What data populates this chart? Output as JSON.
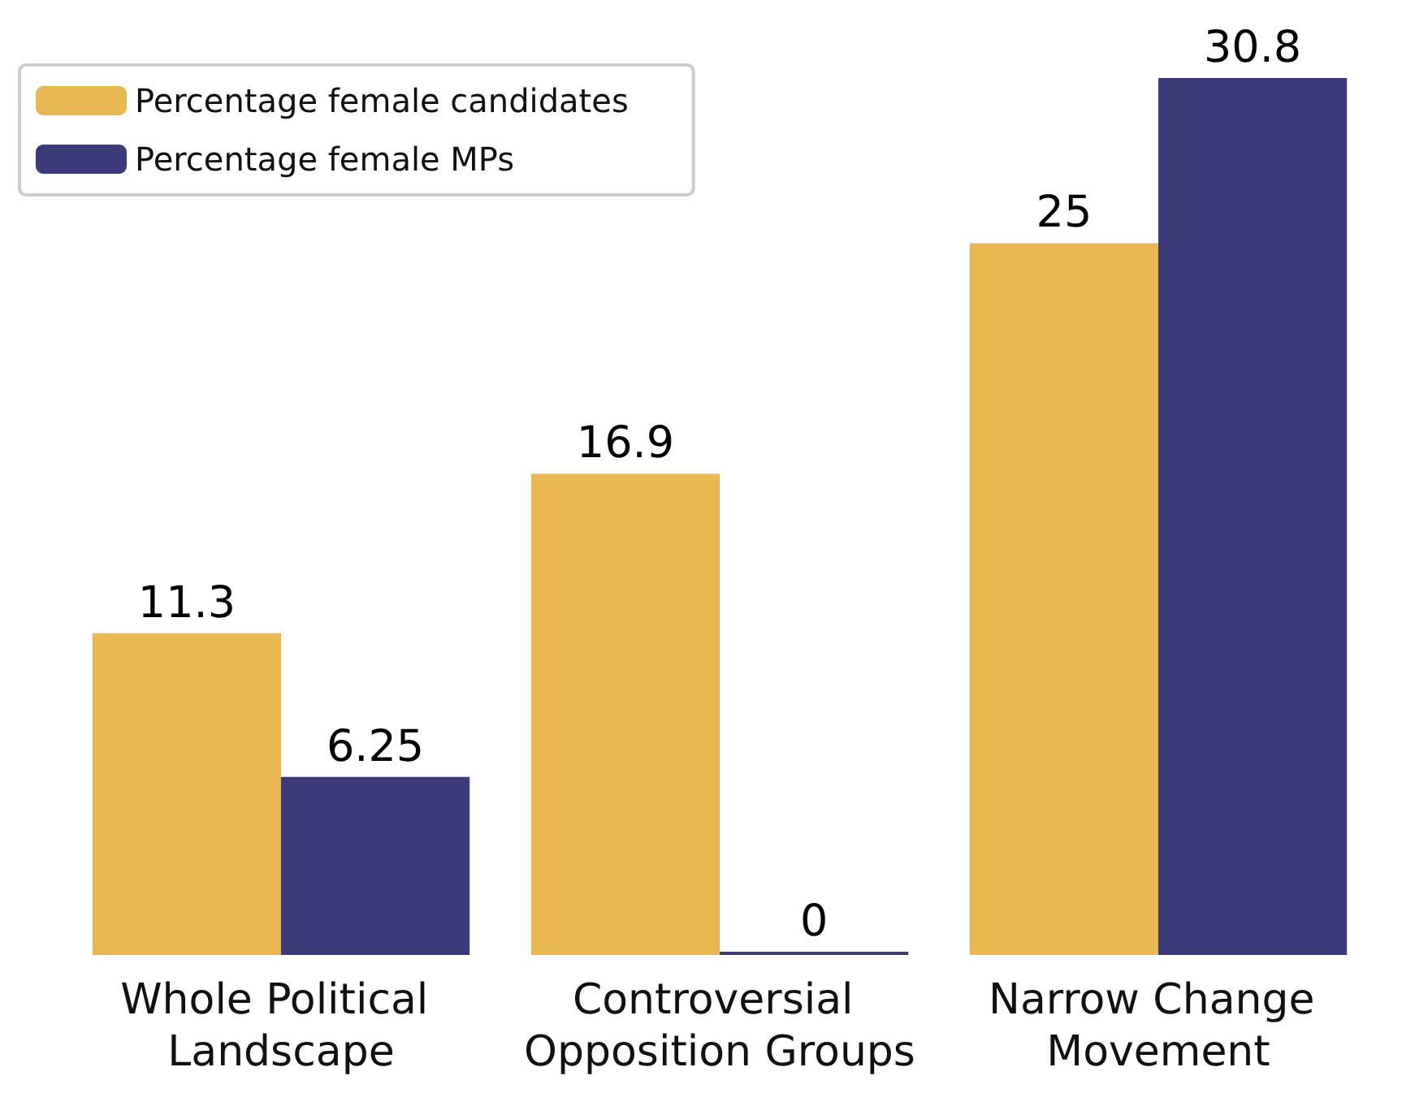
{
  "chart_data": {
    "type": "bar",
    "categories": [
      "Whole Political Landscape",
      "Controversial Opposition Groups",
      "Narrow Change Movement"
    ],
    "series": [
      {
        "name": "Percentage female candidates",
        "color": "#e6b84f",
        "values": [
          11.3,
          16.9,
          25
        ]
      },
      {
        "name": "Percentage female MPs",
        "color": "#3a3b78",
        "values": [
          6.25,
          0,
          30.8
        ]
      }
    ],
    "data_labels": true,
    "legend": "top left",
    "grid": false
  }
}
